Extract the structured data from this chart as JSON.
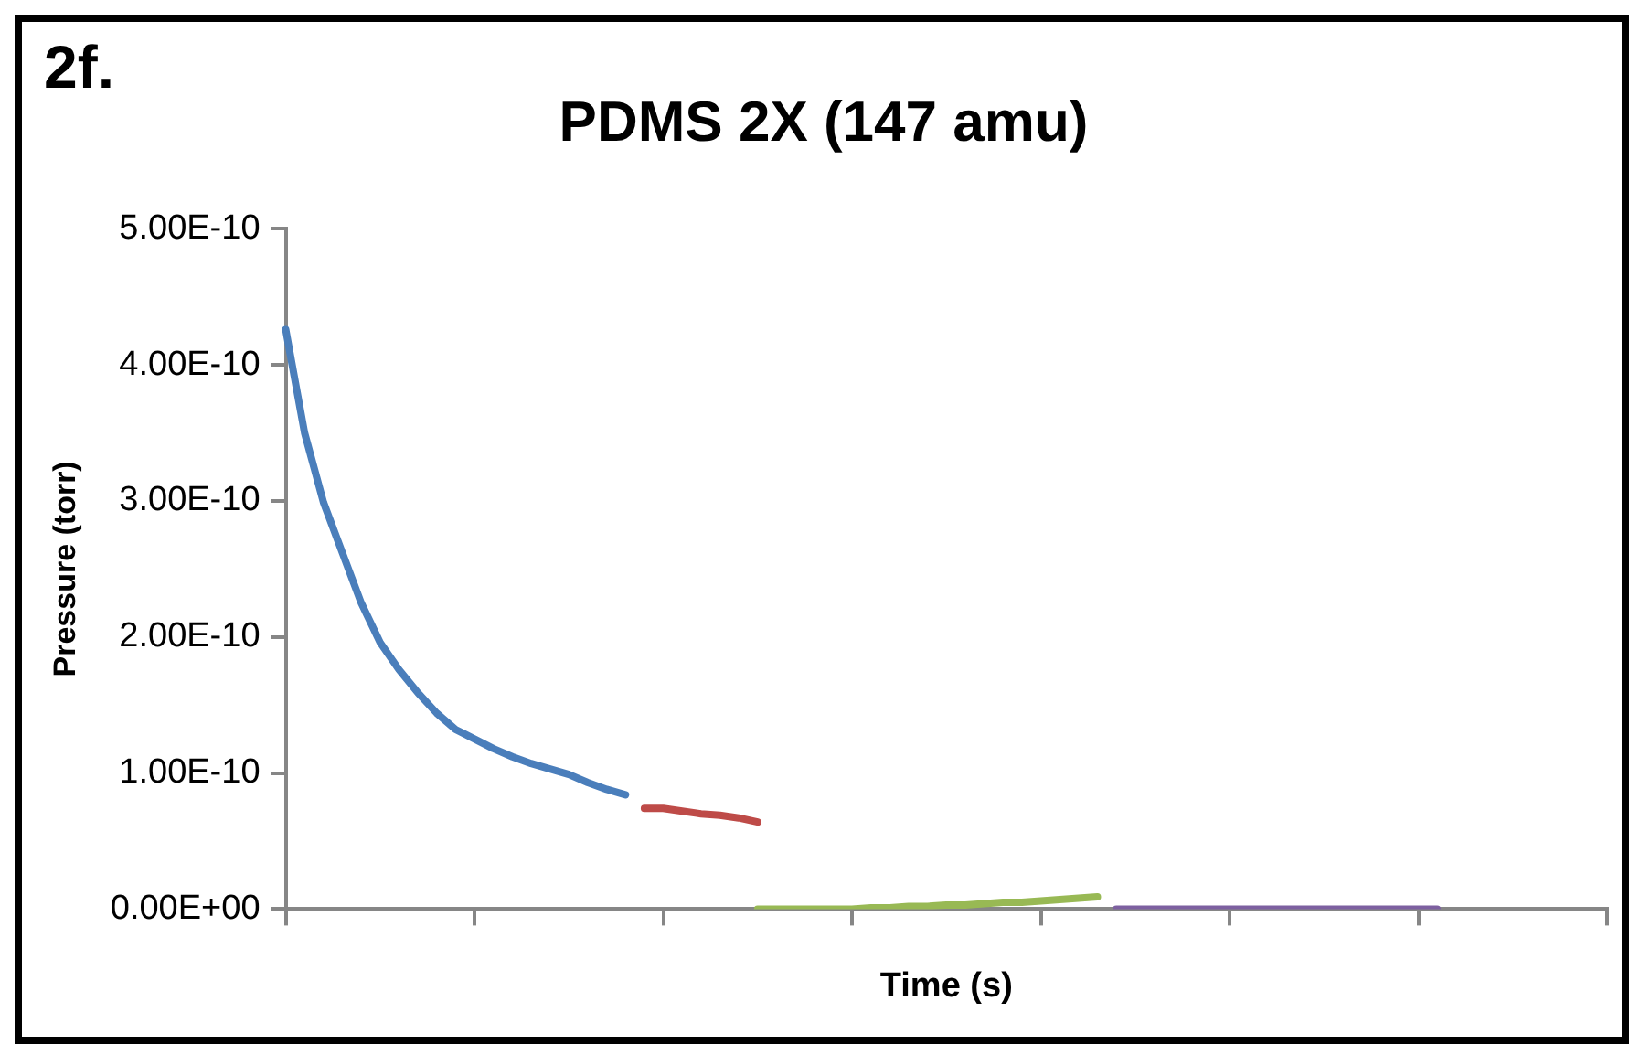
{
  "chart_data": {
    "type": "line",
    "title": "PDMS 2X (147 amu)",
    "xlabel": "Time (s)",
    "ylabel": "Pressure (torr)",
    "annotations": [
      "2f."
    ],
    "categories": [
      null,
      null,
      null,
      null,
      null,
      null,
      null,
      null,
      null,
      null,
      null,
      null,
      null,
      null,
      null,
      null,
      null,
      null,
      null,
      null,
      null,
      null,
      null,
      null,
      null,
      null,
      null,
      null,
      null,
      null,
      null,
      null,
      null,
      null,
      null,
      null,
      null,
      null,
      null,
      null,
      null,
      null,
      null,
      null,
      null,
      null,
      null,
      null,
      null,
      null,
      null,
      null,
      null,
      null,
      null,
      null,
      null,
      null,
      null,
      null,
      null,
      null,
      null,
      null,
      null,
      null,
      null,
      null,
      null,
      null,
      null
    ],
    "series": [
      {
        "color": "#4a7ebb",
        "values": [
          4.26e-10,
          3.5e-10,
          2.99e-10,
          2.62e-10,
          2.25e-10,
          1.96e-10,
          1.76e-10,
          1.59e-10,
          1.44e-10,
          1.32e-10,
          1.25e-10,
          1.18e-10,
          1.12e-10,
          1.07e-10,
          1.03e-10,
          9.9e-11,
          9.3e-11,
          8.8e-11,
          8.4e-11,
          null,
          null,
          null,
          null,
          null,
          null,
          null,
          null,
          null,
          null,
          null,
          null,
          null,
          null,
          null,
          null,
          null,
          null,
          null,
          null,
          null,
          null,
          null,
          null,
          null,
          null,
          null,
          null,
          null,
          null,
          null,
          null,
          null,
          null,
          null,
          null,
          null,
          null,
          null,
          null,
          null,
          null,
          null,
          null,
          null,
          null,
          null,
          null,
          null,
          null,
          null,
          null
        ]
      },
      {
        "color": "#be4b48",
        "values": [
          null,
          null,
          null,
          null,
          null,
          null,
          null,
          null,
          null,
          null,
          null,
          null,
          null,
          null,
          null,
          null,
          null,
          null,
          null,
          7.4e-11,
          7.4e-11,
          7.2e-11,
          7e-11,
          6.9e-11,
          6.7e-11,
          6.4e-11,
          null,
          null,
          null,
          null,
          null,
          null,
          null,
          null,
          null,
          null,
          null,
          null,
          null,
          null,
          null,
          null,
          null,
          null,
          null,
          null,
          null,
          null,
          null,
          null,
          null,
          null,
          null,
          null,
          null,
          null,
          null,
          null,
          null,
          null,
          null,
          null,
          null,
          null,
          null,
          null,
          null,
          null,
          null,
          null,
          null
        ]
      },
      {
        "color": "#98b954",
        "values": [
          null,
          null,
          null,
          null,
          null,
          null,
          null,
          null,
          null,
          null,
          null,
          null,
          null,
          null,
          null,
          null,
          null,
          null,
          null,
          null,
          null,
          null,
          null,
          null,
          null,
          0,
          0,
          0,
          0,
          0,
          0,
          1e-12,
          1e-12,
          2e-12,
          2e-12,
          3e-12,
          3e-12,
          4e-12,
          5e-12,
          5e-12,
          6e-12,
          7e-12,
          8e-12,
          9e-12,
          null,
          null,
          null,
          null,
          null,
          null,
          null,
          null,
          null,
          null,
          null,
          null,
          null,
          null,
          null,
          null,
          null,
          null,
          null,
          null,
          null,
          null,
          null,
          null,
          null,
          null,
          null
        ]
      },
      {
        "color": "#7d60a0",
        "values": [
          null,
          null,
          null,
          null,
          null,
          null,
          null,
          null,
          null,
          null,
          null,
          null,
          null,
          null,
          null,
          null,
          null,
          null,
          null,
          null,
          null,
          null,
          null,
          null,
          null,
          null,
          null,
          null,
          null,
          null,
          null,
          null,
          null,
          null,
          null,
          null,
          null,
          null,
          null,
          null,
          null,
          null,
          null,
          null,
          0,
          0,
          0,
          0,
          0,
          0,
          0,
          0,
          0,
          0,
          0,
          0,
          0,
          0,
          0,
          0,
          0,
          0,
          null,
          null,
          null,
          null,
          null,
          null,
          null,
          null,
          null
        ]
      }
    ],
    "ylim": [
      0,
      5e-10
    ],
    "yticks": [
      {
        "value": 0,
        "label": "0.00E+00"
      },
      {
        "value": 1e-10,
        "label": "1.00E-10"
      },
      {
        "value": 2e-10,
        "label": "2.00E-10"
      },
      {
        "value": 3e-10,
        "label": "3.00E-10"
      },
      {
        "value": 4e-10,
        "label": "4.00E-10"
      },
      {
        "value": 5e-10,
        "label": "5.00E-10"
      }
    ],
    "grid": false,
    "legend": false,
    "marker": "none",
    "line_style": "solid",
    "tick_labels": "y"
  }
}
